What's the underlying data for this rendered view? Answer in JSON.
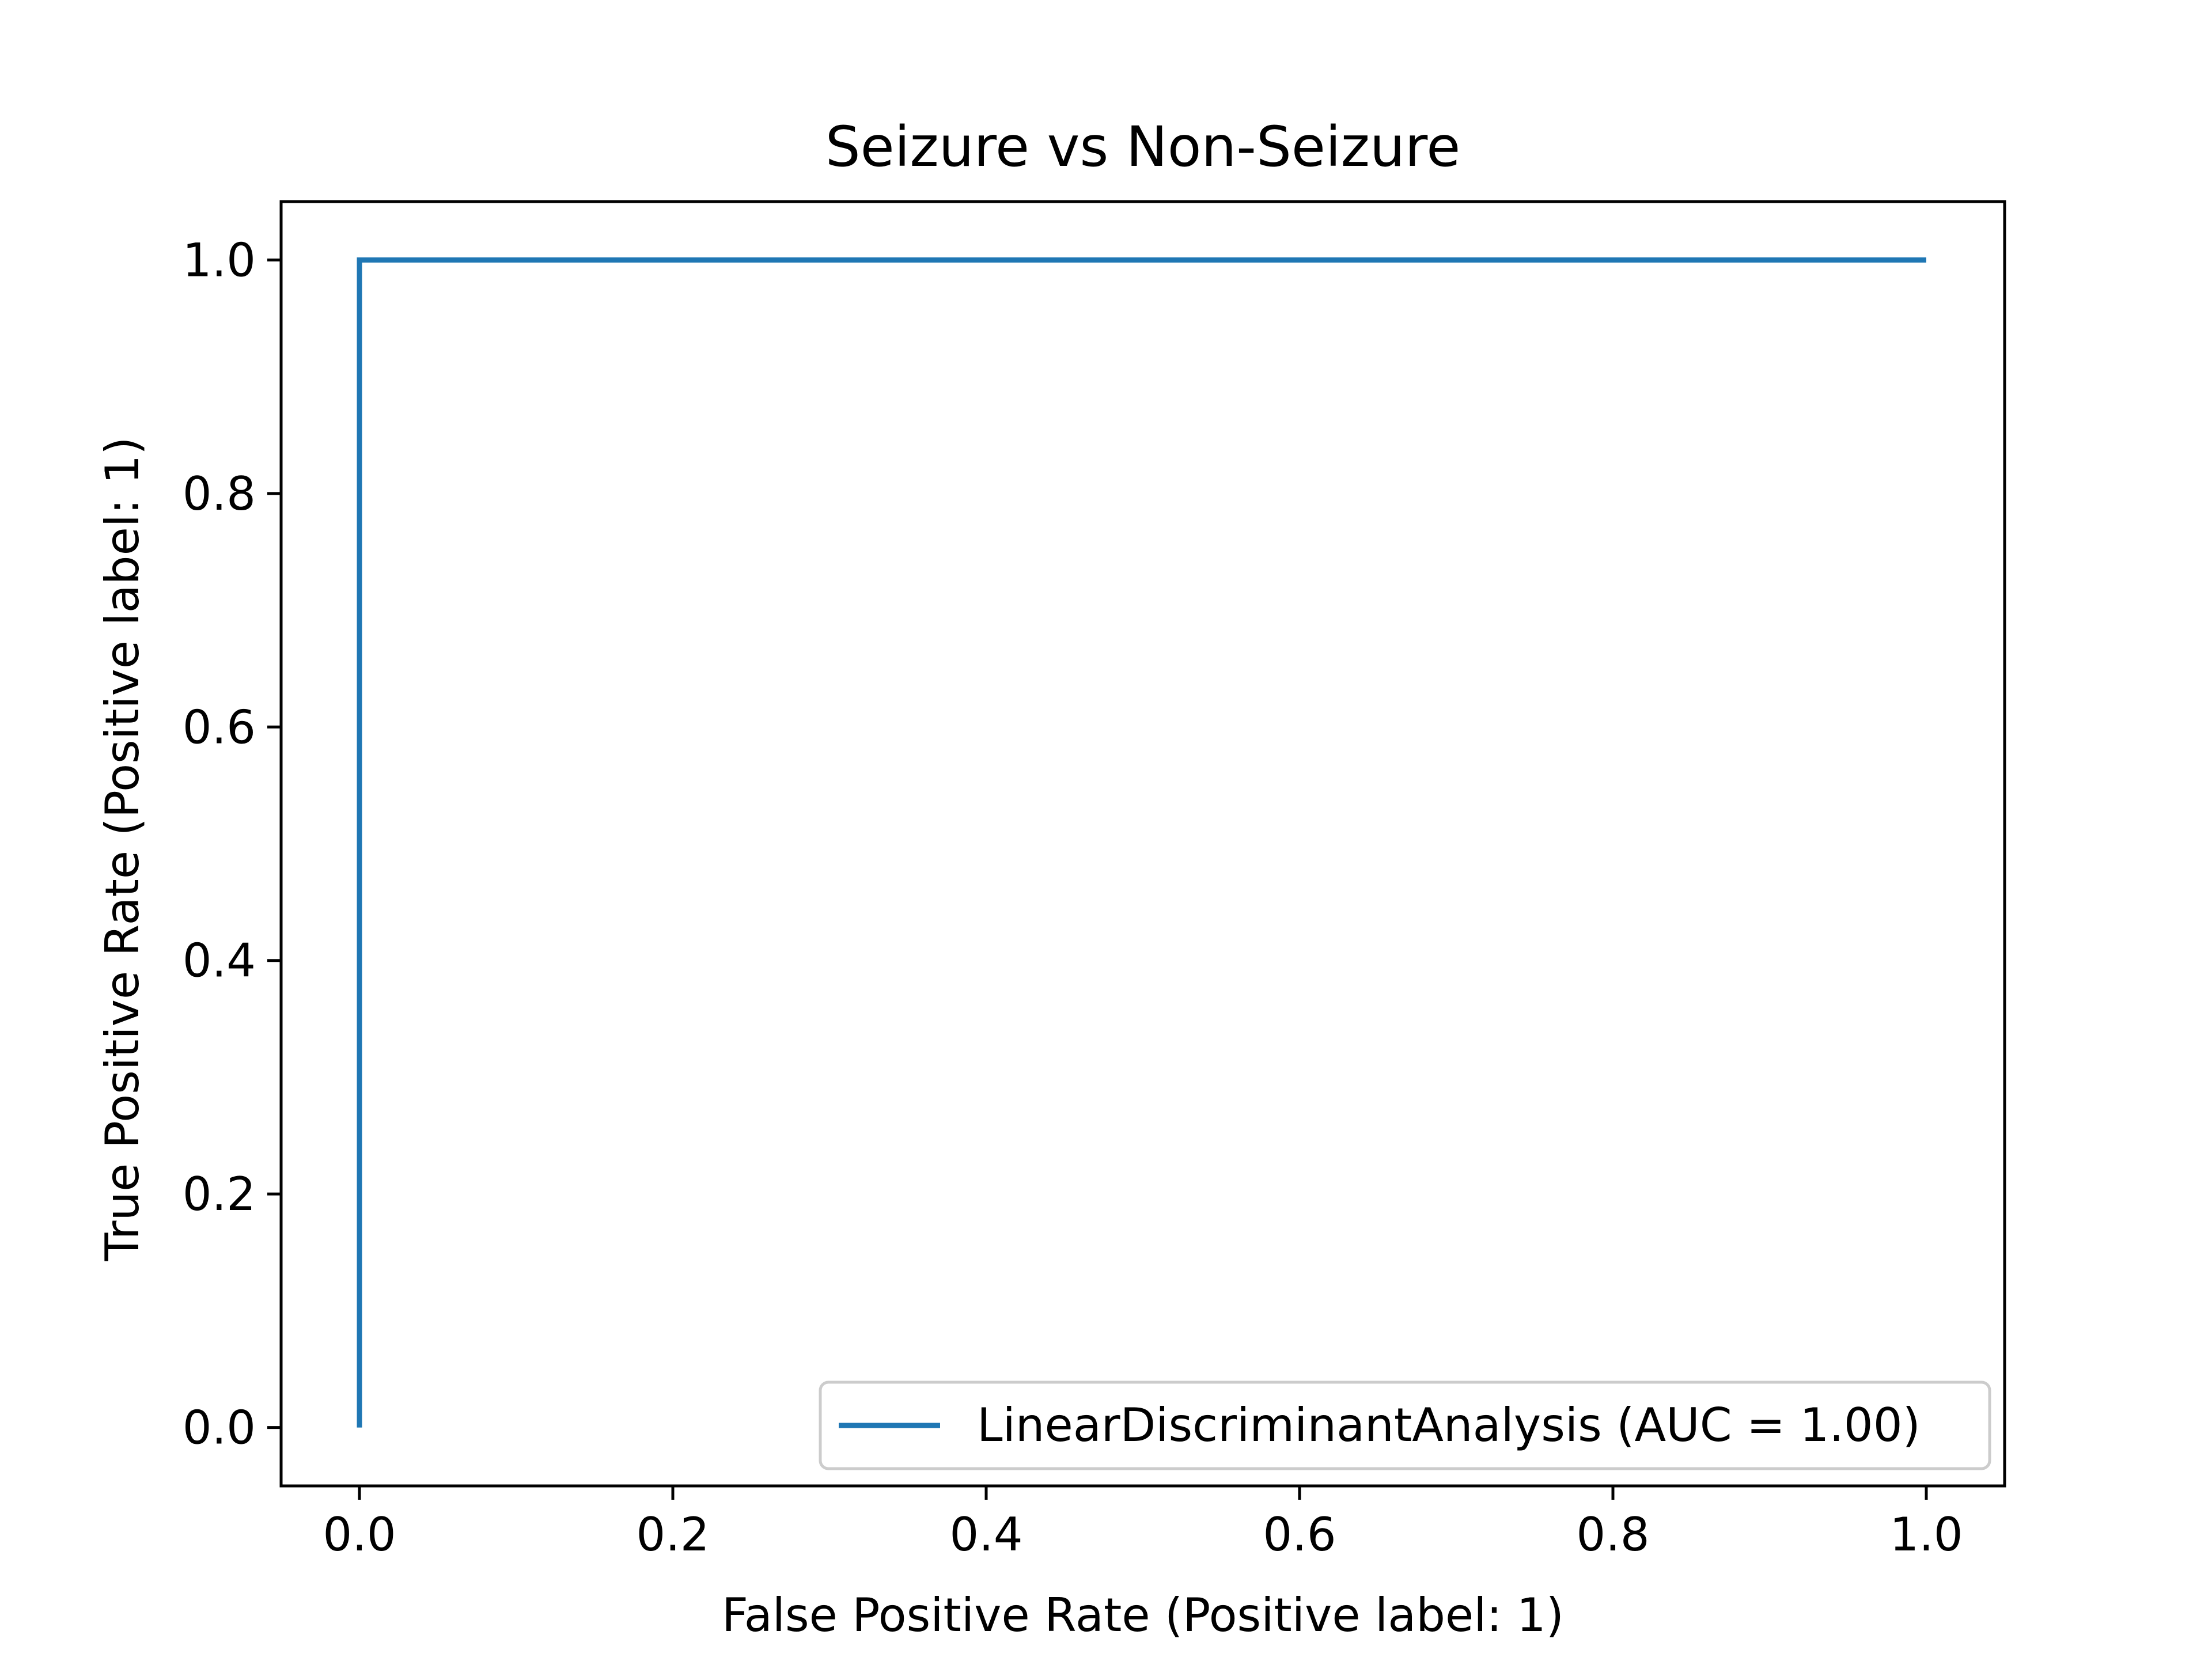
{
  "chart_data": {
    "type": "line",
    "title": "Seizure vs Non-Seizure",
    "xlabel": "False Positive Rate (Positive label: 1)",
    "ylabel": "True Positive Rate (Positive label: 1)",
    "xlim": [
      -0.05,
      1.05
    ],
    "ylim": [
      -0.05,
      1.05
    ],
    "xticks": [
      "0.0",
      "0.2",
      "0.4",
      "0.6",
      "0.8",
      "1.0"
    ],
    "yticks": [
      "0.0",
      "0.2",
      "0.4",
      "0.6",
      "0.8",
      "1.0"
    ],
    "grid": false,
    "legend_position": "lower-right",
    "series": [
      {
        "name": "LinearDiscriminantAnalysis (AUC = 1.00)",
        "color": "#1f77b4",
        "x": [
          0.0,
          0.0,
          1.0
        ],
        "y": [
          0.0,
          1.0,
          1.0
        ]
      }
    ]
  }
}
